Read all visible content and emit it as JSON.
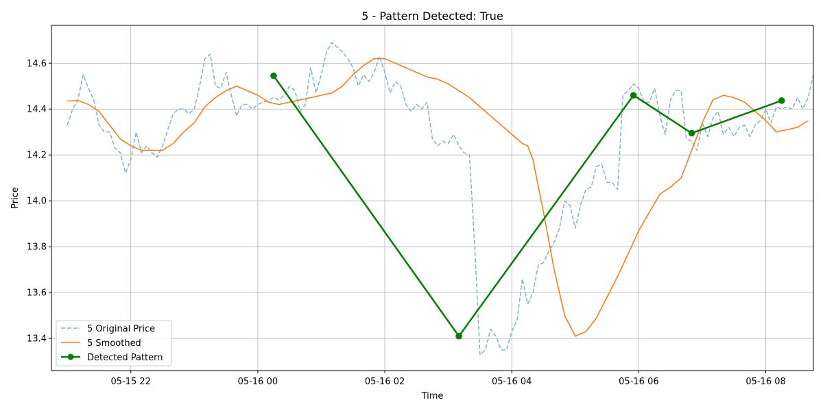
{
  "chart_data": {
    "type": "line",
    "title": "5 - Pattern Detected: True",
    "xlabel": "Time",
    "ylabel": "Price",
    "x_axis": {
      "type": "datetime",
      "range": [
        "2025-05-15 20:45",
        "2025-05-16 08:45"
      ],
      "ticks": [
        {
          "value": "2025-05-15 22:00",
          "label": "05-15 22"
        },
        {
          "value": "2025-05-16 00:00",
          "label": "05-16 00"
        },
        {
          "value": "2025-05-16 02:00",
          "label": "05-16 02"
        },
        {
          "value": "2025-05-16 04:00",
          "label": "05-16 04"
        },
        {
          "value": "2025-05-16 06:00",
          "label": "05-16 06"
        },
        {
          "value": "2025-05-16 08:00",
          "label": "05-16 08"
        }
      ]
    },
    "ylim": [
      13.26,
      14.765
    ],
    "y_ticks": [
      13.4,
      13.6,
      13.8,
      14.0,
      14.2,
      14.4,
      14.6
    ],
    "grid": true,
    "legend": "lower-left",
    "series": [
      {
        "name": "5 Original Price",
        "style": "dashed",
        "color": "#7fb0d5",
        "points": [
          [
            "2025-05-15 21:00",
            14.33
          ],
          [
            "2025-05-15 21:05",
            14.4
          ],
          [
            "2025-05-15 21:10",
            14.44
          ],
          [
            "2025-05-15 21:15",
            14.55
          ],
          [
            "2025-05-15 21:20",
            14.49
          ],
          [
            "2025-05-15 21:25",
            14.44
          ],
          [
            "2025-05-15 21:30",
            14.33
          ],
          [
            "2025-05-15 21:35",
            14.3
          ],
          [
            "2025-05-15 21:40",
            14.3
          ],
          [
            "2025-05-15 21:45",
            14.23
          ],
          [
            "2025-05-15 21:50",
            14.21
          ],
          [
            "2025-05-15 21:55",
            14.12
          ],
          [
            "2025-05-15 22:00",
            14.18
          ],
          [
            "2025-05-15 22:05",
            14.3
          ],
          [
            "2025-05-15 22:10",
            14.21
          ],
          [
            "2025-05-15 22:15",
            14.24
          ],
          [
            "2025-05-15 22:20",
            14.21
          ],
          [
            "2025-05-15 22:25",
            14.19
          ],
          [
            "2025-05-15 22:30",
            14.24
          ],
          [
            "2025-05-15 22:35",
            14.31
          ],
          [
            "2025-05-15 22:40",
            14.38
          ],
          [
            "2025-05-15 22:45",
            14.4
          ],
          [
            "2025-05-15 22:50",
            14.4
          ],
          [
            "2025-05-15 22:55",
            14.38
          ],
          [
            "2025-05-15 23:00",
            14.4
          ],
          [
            "2025-05-15 23:05",
            14.5
          ],
          [
            "2025-05-15 23:10",
            14.62
          ],
          [
            "2025-05-15 23:15",
            14.64
          ],
          [
            "2025-05-15 23:20",
            14.5
          ],
          [
            "2025-05-15 23:25",
            14.49
          ],
          [
            "2025-05-15 23:30",
            14.56
          ],
          [
            "2025-05-15 23:35",
            14.46
          ],
          [
            "2025-05-15 23:40",
            14.37
          ],
          [
            "2025-05-15 23:45",
            14.42
          ],
          [
            "2025-05-15 23:50",
            14.42
          ],
          [
            "2025-05-15 23:55",
            14.4
          ],
          [
            "2025-05-16 00:00",
            14.42
          ],
          [
            "2025-05-16 00:05",
            14.43
          ],
          [
            "2025-05-16 00:10",
            14.44
          ],
          [
            "2025-05-16 00:15",
            14.45
          ],
          [
            "2025-05-16 00:20",
            14.44
          ],
          [
            "2025-05-16 00:25",
            14.46
          ],
          [
            "2025-05-16 00:30",
            14.5
          ],
          [
            "2025-05-16 00:35",
            14.48
          ],
          [
            "2025-05-16 00:40",
            14.39
          ],
          [
            "2025-05-16 00:45",
            14.42
          ],
          [
            "2025-05-16 00:50",
            14.58
          ],
          [
            "2025-05-16 00:55",
            14.47
          ],
          [
            "2025-05-16 01:00",
            14.55
          ],
          [
            "2025-05-16 01:05",
            14.65
          ],
          [
            "2025-05-16 01:10",
            14.69
          ],
          [
            "2025-05-16 01:15",
            14.67
          ],
          [
            "2025-05-16 01:20",
            14.65
          ],
          [
            "2025-05-16 01:25",
            14.62
          ],
          [
            "2025-05-16 01:30",
            14.58
          ],
          [
            "2025-05-16 01:35",
            14.5
          ],
          [
            "2025-05-16 01:40",
            14.55
          ],
          [
            "2025-05-16 01:45",
            14.52
          ],
          [
            "2025-05-16 01:50",
            14.56
          ],
          [
            "2025-05-16 01:55",
            14.63
          ],
          [
            "2025-05-16 02:00",
            14.56
          ],
          [
            "2025-05-16 02:05",
            14.47
          ],
          [
            "2025-05-16 02:10",
            14.52
          ],
          [
            "2025-05-16 02:15",
            14.5
          ],
          [
            "2025-05-16 02:20",
            14.42
          ],
          [
            "2025-05-16 02:25",
            14.39
          ],
          [
            "2025-05-16 02:30",
            14.42
          ],
          [
            "2025-05-16 02:35",
            14.4
          ],
          [
            "2025-05-16 02:40",
            14.43
          ],
          [
            "2025-05-16 02:45",
            14.27
          ],
          [
            "2025-05-16 02:50",
            14.24
          ],
          [
            "2025-05-16 02:55",
            14.26
          ],
          [
            "2025-05-16 03:00",
            14.25
          ],
          [
            "2025-05-16 03:05",
            14.29
          ],
          [
            "2025-05-16 03:10",
            14.24
          ],
          [
            "2025-05-16 03:15",
            14.21
          ],
          [
            "2025-05-16 03:20",
            14.2
          ],
          [
            "2025-05-16 03:25",
            13.8
          ],
          [
            "2025-05-16 03:30",
            13.33
          ],
          [
            "2025-05-16 03:35",
            13.35
          ],
          [
            "2025-05-16 03:40",
            13.44
          ],
          [
            "2025-05-16 03:45",
            13.41
          ],
          [
            "2025-05-16 03:50",
            13.35
          ],
          [
            "2025-05-16 03:55",
            13.35
          ],
          [
            "2025-05-16 04:00",
            13.43
          ],
          [
            "2025-05-16 04:05",
            13.48
          ],
          [
            "2025-05-16 04:10",
            13.66
          ],
          [
            "2025-05-16 04:15",
            13.55
          ],
          [
            "2025-05-16 04:20",
            13.6
          ],
          [
            "2025-05-16 04:25",
            13.72
          ],
          [
            "2025-05-16 04:30",
            13.73
          ],
          [
            "2025-05-16 04:35",
            13.78
          ],
          [
            "2025-05-16 04:40",
            13.82
          ],
          [
            "2025-05-16 04:45",
            13.88
          ],
          [
            "2025-05-16 04:50",
            14.0
          ],
          [
            "2025-05-16 04:55",
            13.98
          ],
          [
            "2025-05-16 05:00",
            13.88
          ],
          [
            "2025-05-16 05:05",
            13.98
          ],
          [
            "2025-05-16 05:10",
            14.05
          ],
          [
            "2025-05-16 05:15",
            14.06
          ],
          [
            "2025-05-16 05:20",
            14.15
          ],
          [
            "2025-05-16 05:25",
            14.16
          ],
          [
            "2025-05-16 05:30",
            14.08
          ],
          [
            "2025-05-16 05:35",
            14.08
          ],
          [
            "2025-05-16 05:40",
            14.05
          ],
          [
            "2025-05-16 05:45",
            14.46
          ],
          [
            "2025-05-16 05:50",
            14.48
          ],
          [
            "2025-05-16 05:55",
            14.51
          ],
          [
            "2025-05-16 06:00",
            14.49
          ],
          [
            "2025-05-16 06:05",
            14.43
          ],
          [
            "2025-05-16 06:10",
            14.43
          ],
          [
            "2025-05-16 06:15",
            14.49
          ],
          [
            "2025-05-16 06:20",
            14.37
          ],
          [
            "2025-05-16 06:25",
            14.29
          ],
          [
            "2025-05-16 06:30",
            14.44
          ],
          [
            "2025-05-16 06:35",
            14.48
          ],
          [
            "2025-05-16 06:40",
            14.48
          ],
          [
            "2025-05-16 06:45",
            14.27
          ],
          [
            "2025-05-16 06:50",
            14.26
          ],
          [
            "2025-05-16 06:55",
            14.22
          ],
          [
            "2025-05-16 07:00",
            14.34
          ],
          [
            "2025-05-16 07:05",
            14.28
          ],
          [
            "2025-05-16 07:10",
            14.36
          ],
          [
            "2025-05-16 07:15",
            14.39
          ],
          [
            "2025-05-16 07:20",
            14.29
          ],
          [
            "2025-05-16 07:25",
            14.32
          ],
          [
            "2025-05-16 07:30",
            14.28
          ],
          [
            "2025-05-16 07:35",
            14.32
          ],
          [
            "2025-05-16 07:40",
            14.33
          ],
          [
            "2025-05-16 07:45",
            14.28
          ],
          [
            "2025-05-16 07:50",
            14.33
          ],
          [
            "2025-05-16 07:55",
            14.35
          ],
          [
            "2025-05-16 08:00",
            14.4
          ],
          [
            "2025-05-16 08:05",
            14.34
          ],
          [
            "2025-05-16 08:10",
            14.41
          ],
          [
            "2025-05-16 08:15",
            14.4
          ],
          [
            "2025-05-16 08:20",
            14.41
          ],
          [
            "2025-05-16 08:25",
            14.4
          ],
          [
            "2025-05-16 08:30",
            14.45
          ],
          [
            "2025-05-16 08:35",
            14.4
          ],
          [
            "2025-05-16 08:40",
            14.45
          ],
          [
            "2025-05-16 08:45",
            14.55
          ]
        ]
      },
      {
        "name": "5 Smoothed",
        "style": "solid",
        "color": "#ff7f0e",
        "points": [
          [
            "2025-05-15 21:00",
            14.435
          ],
          [
            "2025-05-15 21:10",
            14.437
          ],
          [
            "2025-05-15 21:20",
            14.42
          ],
          [
            "2025-05-15 21:30",
            14.39
          ],
          [
            "2025-05-15 21:40",
            14.33
          ],
          [
            "2025-05-15 21:50",
            14.27
          ],
          [
            "2025-05-15 22:00",
            14.24
          ],
          [
            "2025-05-15 22:10",
            14.22
          ],
          [
            "2025-05-15 22:20",
            14.22
          ],
          [
            "2025-05-15 22:30",
            14.22
          ],
          [
            "2025-05-15 22:40",
            14.25
          ],
          [
            "2025-05-15 22:50",
            14.3
          ],
          [
            "2025-05-15 23:00",
            14.34
          ],
          [
            "2025-05-15 23:10",
            14.41
          ],
          [
            "2025-05-15 23:20",
            14.45
          ],
          [
            "2025-05-15 23:30",
            14.48
          ],
          [
            "2025-05-15 23:40",
            14.5
          ],
          [
            "2025-05-15 23:50",
            14.48
          ],
          [
            "2025-05-16 00:00",
            14.46
          ],
          [
            "2025-05-16 00:10",
            14.43
          ],
          [
            "2025-05-16 00:20",
            14.42
          ],
          [
            "2025-05-16 00:30",
            14.43
          ],
          [
            "2025-05-16 00:40",
            14.44
          ],
          [
            "2025-05-16 00:50",
            14.45
          ],
          [
            "2025-05-16 01:00",
            14.46
          ],
          [
            "2025-05-16 01:10",
            14.47
          ],
          [
            "2025-05-16 01:20",
            14.5
          ],
          [
            "2025-05-16 01:30",
            14.55
          ],
          [
            "2025-05-16 01:40",
            14.59
          ],
          [
            "2025-05-16 01:50",
            14.62
          ],
          [
            "2025-05-16 02:00",
            14.62
          ],
          [
            "2025-05-16 02:10",
            14.6
          ],
          [
            "2025-05-16 02:20",
            14.58
          ],
          [
            "2025-05-16 02:30",
            14.56
          ],
          [
            "2025-05-16 02:40",
            14.54
          ],
          [
            "2025-05-16 02:50",
            14.53
          ],
          [
            "2025-05-16 03:00",
            14.51
          ],
          [
            "2025-05-16 03:10",
            14.48
          ],
          [
            "2025-05-16 03:20",
            14.45
          ],
          [
            "2025-05-16 03:30",
            14.41
          ],
          [
            "2025-05-16 03:40",
            14.37
          ],
          [
            "2025-05-16 03:50",
            14.33
          ],
          [
            "2025-05-16 04:00",
            14.29
          ],
          [
            "2025-05-16 04:10",
            14.25
          ],
          [
            "2025-05-16 04:15",
            14.24
          ],
          [
            "2025-05-16 04:20",
            14.18
          ],
          [
            "2025-05-16 04:30",
            13.95
          ],
          [
            "2025-05-16 04:40",
            13.7
          ],
          [
            "2025-05-16 04:50",
            13.5
          ],
          [
            "2025-05-16 05:00",
            13.41
          ],
          [
            "2025-05-16 05:10",
            13.43
          ],
          [
            "2025-05-16 05:20",
            13.49
          ],
          [
            "2025-05-16 05:30",
            13.58
          ],
          [
            "2025-05-16 05:40",
            13.67
          ],
          [
            "2025-05-16 05:50",
            13.77
          ],
          [
            "2025-05-16 06:00",
            13.87
          ],
          [
            "2025-05-16 06:10",
            13.95
          ],
          [
            "2025-05-16 06:20",
            14.03
          ],
          [
            "2025-05-16 06:30",
            14.06
          ],
          [
            "2025-05-16 06:40",
            14.1
          ],
          [
            "2025-05-16 06:50",
            14.22
          ],
          [
            "2025-05-16 07:00",
            14.34
          ],
          [
            "2025-05-16 07:10",
            14.44
          ],
          [
            "2025-05-16 07:20",
            14.46
          ],
          [
            "2025-05-16 07:30",
            14.45
          ],
          [
            "2025-05-16 07:40",
            14.43
          ],
          [
            "2025-05-16 07:50",
            14.39
          ],
          [
            "2025-05-16 08:00",
            14.35
          ],
          [
            "2025-05-16 08:10",
            14.3
          ],
          [
            "2025-05-16 08:20",
            14.31
          ],
          [
            "2025-05-16 08:30",
            14.32
          ],
          [
            "2025-05-16 08:40",
            14.35
          ]
        ]
      },
      {
        "name": "Detected Pattern",
        "style": "solid-markers",
        "color": "#008000",
        "points": [
          [
            "2025-05-16 00:15",
            14.545
          ],
          [
            "2025-05-16 03:10",
            13.41
          ],
          [
            "2025-05-16 05:55",
            14.46
          ],
          [
            "2025-05-16 06:50",
            14.295
          ],
          [
            "2025-05-16 08:15",
            14.437
          ]
        ]
      }
    ]
  }
}
